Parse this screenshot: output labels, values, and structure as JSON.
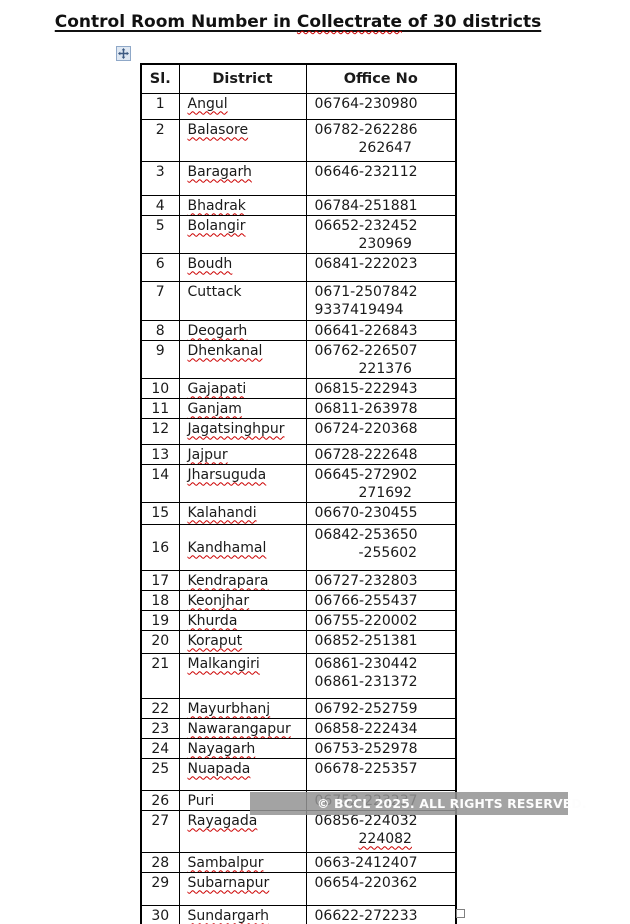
{
  "title": {
    "prefix": "Control Room Number in ",
    "misspelled_word": "Collectrate",
    "suffix": " of 30 districts"
  },
  "watermark_text": "© BCCL 2025. ALL RIGHTS RESERVED.",
  "icons": {
    "move_handle": "four-way-arrow",
    "resize_handle": "small-square"
  },
  "colors": {
    "squiggle_red": "#cc0000",
    "table_border": "#000000",
    "watermark_bg": "#949494",
    "watermark_text": "#ffffff"
  },
  "table": {
    "headers": [
      "Sl.",
      "District",
      "Office No"
    ],
    "rows": [
      {
        "sl": "1",
        "district": "Angul",
        "squiggle": true,
        "office": [
          "06764-230980"
        ]
      },
      {
        "sl": "2",
        "district": "Balasore",
        "squiggle": true,
        "office": [
          "06782-262286",
          "262647"
        ],
        "indent2": true
      },
      {
        "sl": "3",
        "district": "Baragarh",
        "squiggle": true,
        "office": [
          "06646-232112"
        ]
      },
      {
        "sl": "4",
        "district": "Bhadrak",
        "squiggle": true,
        "office": [
          "06784-251881"
        ]
      },
      {
        "sl": "5",
        "district": "Bolangir",
        "squiggle": true,
        "office": [
          "06652-232452",
          "230969"
        ],
        "indent2": true
      },
      {
        "sl": "6",
        "district": "Boudh",
        "squiggle": true,
        "office": [
          "06841-222023"
        ]
      },
      {
        "sl": "7",
        "district": "Cuttack",
        "squiggle": false,
        "office": [
          "0671-2507842",
          "9337419494"
        ]
      },
      {
        "sl": "8",
        "district": "Deogarh",
        "squiggle": true,
        "office": [
          "06641-226843"
        ]
      },
      {
        "sl": "9",
        "district": "Dhenkanal",
        "squiggle": true,
        "office": [
          "06762-226507",
          "221376"
        ],
        "indent2": true
      },
      {
        "sl": "10",
        "district": "Gajapati",
        "squiggle": true,
        "office": [
          "06815-222943"
        ]
      },
      {
        "sl": "11",
        "district": "Ganjam",
        "squiggle": true,
        "office": [
          "06811-263978"
        ]
      },
      {
        "sl": "12",
        "district": "Jagatsinghpur",
        "squiggle": true,
        "office": [
          "06724-220368"
        ]
      },
      {
        "sl": "13",
        "district": "Jajpur",
        "squiggle": true,
        "office": [
          "06728-222648"
        ]
      },
      {
        "sl": "14",
        "district": "Jharsuguda",
        "squiggle": true,
        "office": [
          "06645-272902",
          "271692"
        ],
        "indent2": true
      },
      {
        "sl": "15",
        "district": "Kalahandi",
        "squiggle": true,
        "office": [
          "06670-230455"
        ]
      },
      {
        "sl": "16",
        "district": "Kandhamal",
        "squiggle": true,
        "office": [
          "06842-253650",
          "-255602"
        ],
        "indent2": true,
        "middle": true
      },
      {
        "sl": "17",
        "district": "Kendrapara",
        "squiggle": true,
        "office": [
          "06727-232803"
        ]
      },
      {
        "sl": "18",
        "district": "Keonjhar",
        "squiggle": true,
        "office": [
          "06766-255437"
        ]
      },
      {
        "sl": "19",
        "district": "Khurda",
        "squiggle": true,
        "office": [
          "06755-220002"
        ]
      },
      {
        "sl": "20",
        "district": "Koraput",
        "squiggle": true,
        "office": [
          "06852-251381"
        ]
      },
      {
        "sl": "21",
        "district": "Malkangiri",
        "squiggle": true,
        "office": [
          "06861-230442",
          "06861-231372"
        ]
      },
      {
        "sl": "22",
        "district": "Mayurbhanj",
        "squiggle": true,
        "office": [
          "06792-252759"
        ]
      },
      {
        "sl": "23",
        "district": "Nawarangapur",
        "squiggle": true,
        "office": [
          "06858-222434"
        ]
      },
      {
        "sl": "24",
        "district": "Nayagarh",
        "squiggle": true,
        "office": [
          "06753-252978"
        ]
      },
      {
        "sl": "25",
        "district": "Nuapada",
        "squiggle": true,
        "office": [
          "06678-225357"
        ]
      },
      {
        "sl": "26",
        "district": "Puri",
        "squiggle": false,
        "office": [
          "06752-223237"
        ]
      },
      {
        "sl": "27",
        "district": "Rayagada",
        "squiggle": true,
        "office": [
          "06856-224032",
          "224082"
        ],
        "indent2": true,
        "line2_squiggle": true
      },
      {
        "sl": "28",
        "district": "Sambalpur",
        "squiggle": true,
        "office": [
          "0663-2412407"
        ]
      },
      {
        "sl": "29",
        "district": "Subarnapur",
        "squiggle": true,
        "office": [
          "06654-220362"
        ]
      },
      {
        "sl": "30",
        "district": "Sundargarh",
        "squiggle": true,
        "office": [
          "06622-272233"
        ]
      }
    ]
  }
}
